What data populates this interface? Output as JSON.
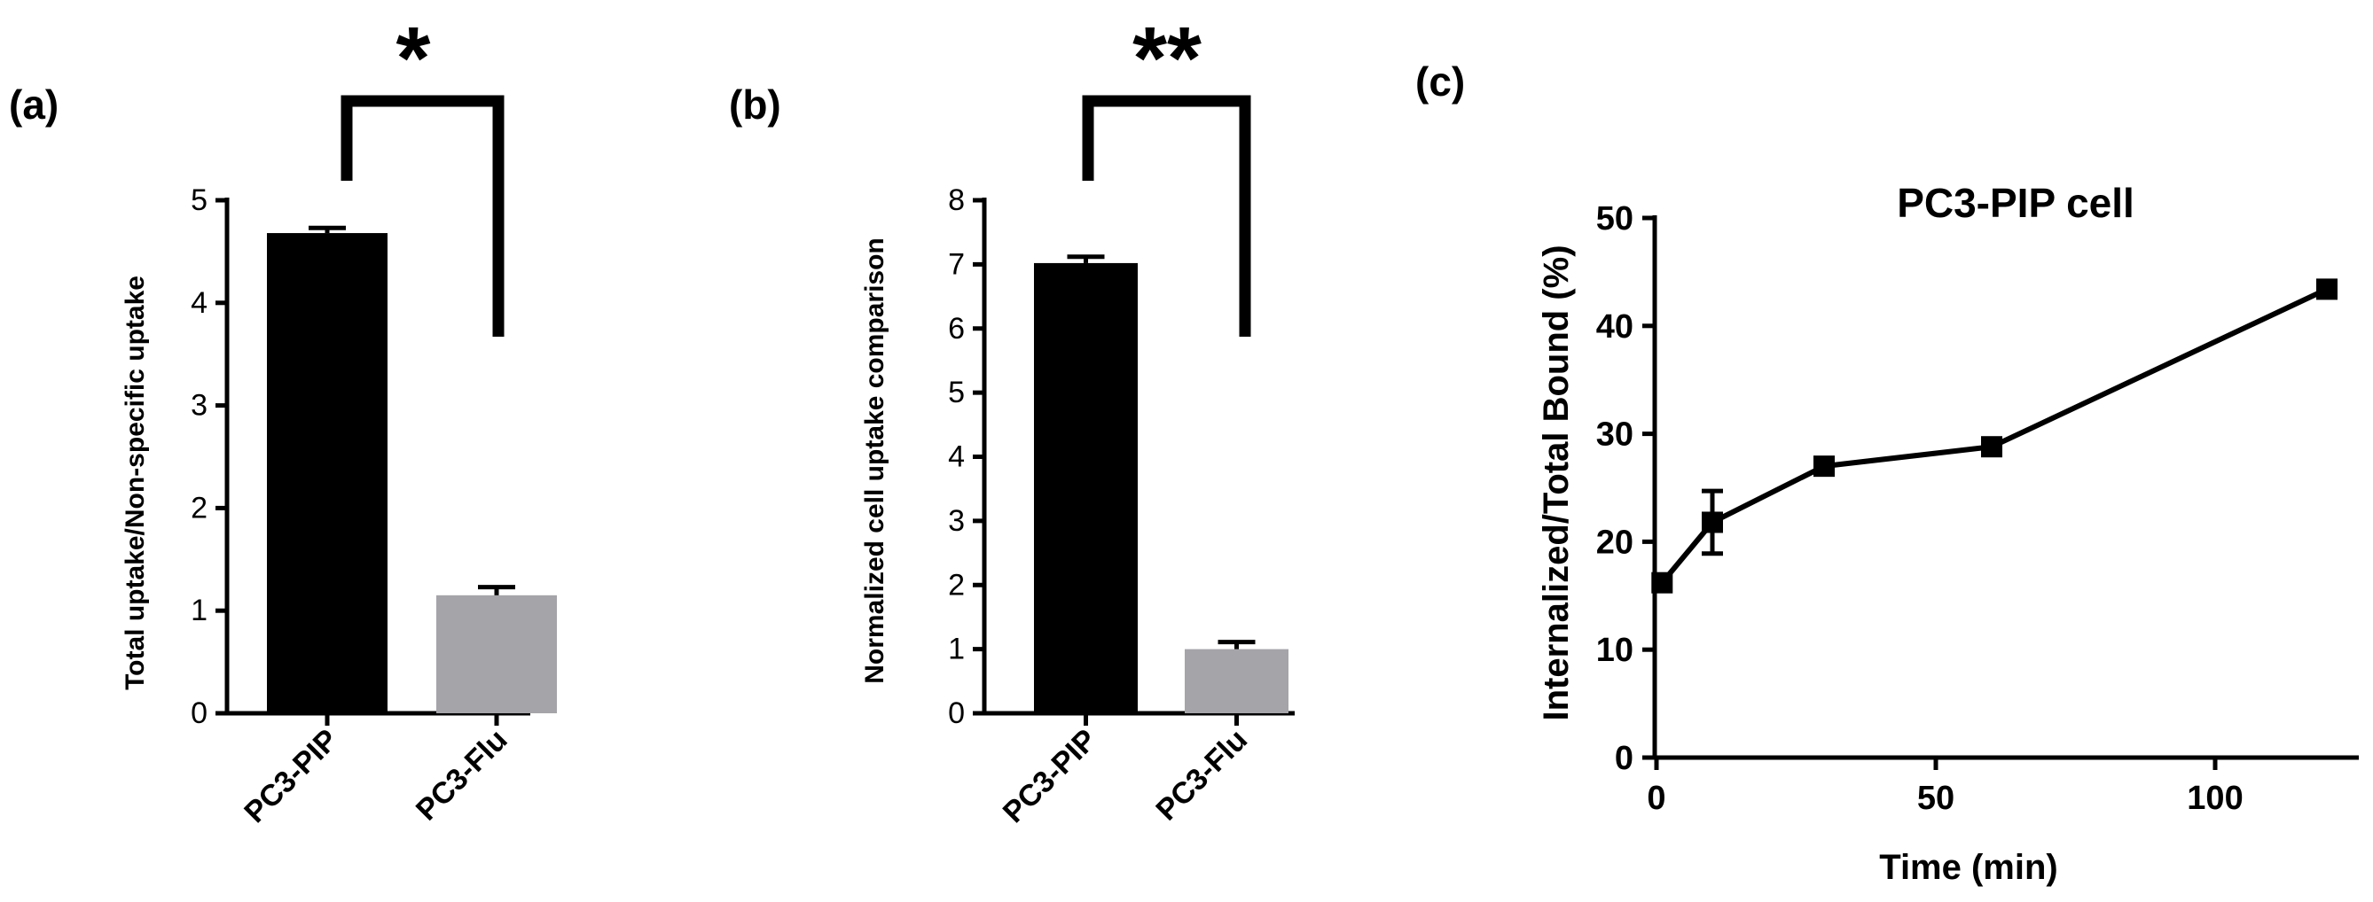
{
  "panels": {
    "a": {
      "label": "(a)"
    },
    "b": {
      "label": "(b)"
    },
    "c": {
      "label": "(c)"
    }
  },
  "colors": {
    "pip": "#000000",
    "flu": "#a4a4a9",
    "axis": "#000000"
  },
  "chart_data": [
    {
      "type": "bar",
      "title": "",
      "xlabel": "",
      "ylabel": "Total uptake/Non-specific uptake",
      "categories": [
        "PC3-PIP",
        "PC3-Flu"
      ],
      "values": [
        4.68,
        1.15
      ],
      "error": [
        0.05,
        0.08
      ],
      "ylim": [
        0,
        5
      ],
      "yticks": [
        "0",
        "1",
        "2",
        "3",
        "4",
        "5"
      ],
      "significance": "*",
      "grid": false
    },
    {
      "type": "bar",
      "title": "",
      "xlabel": "",
      "ylabel": "Normalized cell uptake comparison",
      "categories": [
        "PC3-PIP",
        "PC3-Flu"
      ],
      "values": [
        7.02,
        1.0
      ],
      "error": [
        0.1,
        0.11
      ],
      "ylim": [
        0,
        8
      ],
      "yticks": [
        "0",
        "1",
        "2",
        "3",
        "4",
        "5",
        "6",
        "7",
        "8"
      ],
      "significance": "**",
      "grid": false
    },
    {
      "type": "line",
      "title": "PC3-PIP cell",
      "xlabel": "Time (min)",
      "ylabel": "Internalized/Total Bound (%)",
      "x": [
        1,
        10,
        30,
        60,
        120
      ],
      "y": [
        16.2,
        21.8,
        27.0,
        28.8,
        43.4
      ],
      "error": [
        0.6,
        2.9,
        0.5,
        0.9,
        0.8
      ],
      "xlim": [
        0,
        125
      ],
      "ylim": [
        0,
        50
      ],
      "xticks": [
        "0",
        "50",
        "100"
      ],
      "yticks": [
        "0",
        "10",
        "20",
        "30",
        "40",
        "50"
      ],
      "grid": false
    }
  ]
}
